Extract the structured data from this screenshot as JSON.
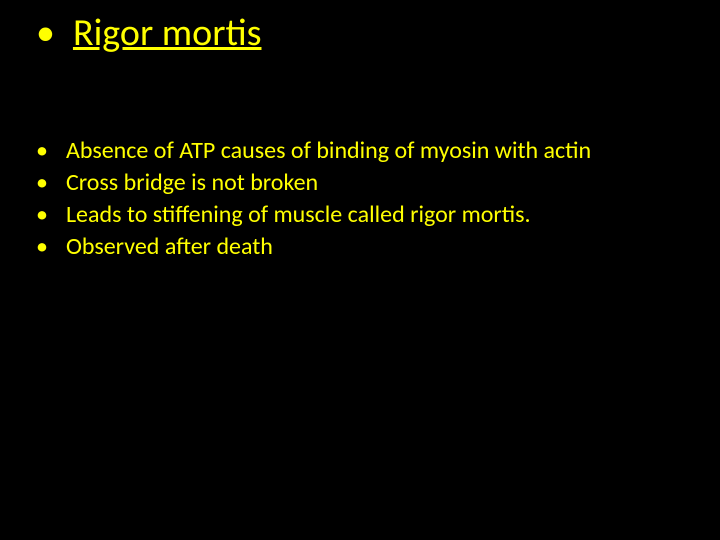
{
  "slide": {
    "background_color": "#000000",
    "text_color": "#ffff00",
    "title": {
      "text": "Rigor mortis",
      "fontsize": 38,
      "underline": true
    },
    "bullets": [
      "Absence of ATP causes of binding of myosin with actin",
      "Cross bridge is not broken",
      "Leads to stiffening of muscle called rigor mortis.",
      "Observed after death"
    ],
    "body_fontsize": 24
  }
}
